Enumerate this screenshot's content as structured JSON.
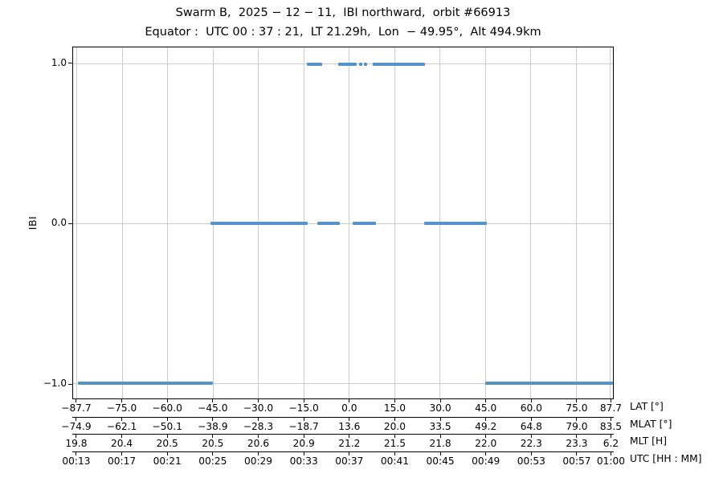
{
  "header": {
    "title": "Swarm B,  2025 − 12 − 11,  IBI northward,  orbit #66913",
    "subtitle": "Equator :  UTC 00 : 37 : 21,  LT 21.29h,  Lon  − 49.95°,  Alt 494.9km"
  },
  "chart_data": {
    "type": "line",
    "title": "Swarm B, 2025-12-11, IBI northward, orbit #66913",
    "subtitle": "Equator: UTC 00:37:21, LT 21.29h, Lon -49.95°, Alt 494.9km",
    "ylabel": "IBI",
    "grid": true,
    "line_color": "#5494cb",
    "grid_color": "#cdcdcd",
    "ylim": [
      -1.095,
      1.105
    ],
    "yticks": [
      {
        "value": 1.0,
        "label": "1.0"
      },
      {
        "value": 0.0,
        "label": "0.0"
      },
      {
        "value": -1.0,
        "label": "-1.0"
      }
    ],
    "xlim_minutes": [
      12.65,
      60.25
    ],
    "tick_minutes": [
      13,
      17,
      21,
      25,
      29,
      33,
      37,
      41,
      45,
      49,
      53,
      57,
      60
    ],
    "x_rows": [
      {
        "name": "LAT [°]",
        "values": [
          "-87.7",
          "-75.0",
          "-60.0",
          "-45.0",
          "-30.0",
          "-15.0",
          "0.0",
          "15.0",
          "30.0",
          "45.0",
          "60.0",
          "75.0",
          "87.7"
        ]
      },
      {
        "name": "MLAT [°]",
        "values": [
          "-74.9",
          "-62.1",
          "-50.1",
          "-38.9",
          "-28.3",
          "-18.7",
          "13.6",
          "20.0",
          "33.5",
          "49.2",
          "64.8",
          "79.0",
          "83.5"
        ]
      },
      {
        "name": "MLT [H]",
        "values": [
          "19.8",
          "20.4",
          "20.5",
          "20.5",
          "20.6",
          "20.9",
          "21.2",
          "21.5",
          "21.8",
          "22.0",
          "22.3",
          "23.3",
          "6.2"
        ]
      },
      {
        "name": "UTC [HH : MM]",
        "values": [
          "00:13",
          "00:17",
          "00:21",
          "00:25",
          "00:29",
          "00:33",
          "00:37",
          "00:41",
          "00:45",
          "00:49",
          "00:53",
          "00:57",
          "01:00"
        ]
      }
    ],
    "series": [
      {
        "name": "IBI",
        "level_segments": [
          {
            "value": 1.0,
            "segments_minutes": [
              [
                33.25,
                34.6
              ],
              [
                36.0,
                37.65
              ],
              [
                37.85,
                38.15
              ],
              [
                38.3,
                38.6
              ],
              [
                39.1,
                43.7
              ]
            ]
          },
          {
            "value": 0.0,
            "segments_minutes": [
              [
                24.75,
                33.35
              ],
              [
                34.2,
                36.2
              ],
              [
                37.3,
                39.35
              ],
              [
                43.6,
                49.15
              ]
            ]
          },
          {
            "value": -1.0,
            "segments_minutes": [
              [
                13.05,
                24.95
              ],
              [
                49.0,
                60.25
              ]
            ]
          }
        ]
      }
    ]
  }
}
